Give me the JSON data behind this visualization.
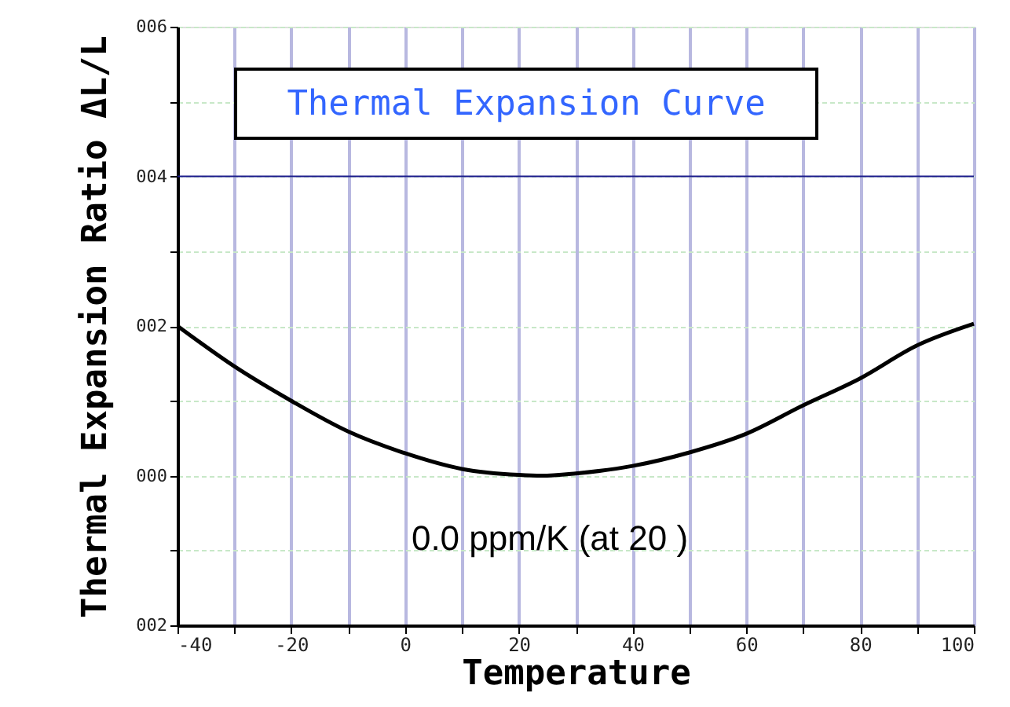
{
  "chart_data": {
    "type": "line",
    "title": "Thermal Expansion Curve",
    "xlabel": "Temperature",
    "ylabel": "Thermal Expansion Ratio ΔL/L",
    "x": [
      -40,
      -30,
      -20,
      -10,
      0,
      10,
      20,
      24,
      30,
      40,
      50,
      60,
      70,
      80,
      90,
      100
    ],
    "series": [
      {
        "color": "#000000",
        "values": [
          2.0,
          1.46,
          1.0,
          0.59,
          0.3,
          0.09,
          0.01,
          0.0,
          0.03,
          0.13,
          0.31,
          0.56,
          0.94,
          1.3,
          1.74,
          2.03
        ]
      }
    ],
    "xlim": [
      -40,
      100
    ],
    "ylim": [
      -2,
      6
    ],
    "xticks": [
      -40,
      {
        "value": -30,
        "label": null
      },
      -20,
      {
        "value": -10,
        "label": null
      },
      0,
      {
        "value": 10,
        "label": null
      },
      20,
      {
        "value": 30,
        "label": null
      },
      40,
      {
        "value": 50,
        "label": null
      },
      60,
      {
        "value": 70,
        "label": null
      },
      80,
      {
        "value": 90,
        "label": null
      },
      100
    ],
    "yticks": [
      {
        "value": -2,
        "label": "002"
      },
      {
        "value": -1,
        "label": null
      },
      {
        "value": 0,
        "label": "000"
      },
      {
        "value": 1,
        "label": null
      },
      {
        "value": 2,
        "label": "002"
      },
      {
        "value": 3,
        "label": null
      },
      {
        "value": 4,
        "label": "004"
      },
      {
        "value": 5,
        "label": null
      },
      {
        "value": 6,
        "label": "006"
      }
    ],
    "ref_lines": [
      {
        "axis": "y",
        "value": 4,
        "color": "#1a1a8c"
      }
    ],
    "annotations": [
      "0.0 ppm/K (at 20 )"
    ],
    "grid": true,
    "line_style": "solid",
    "marker": "none"
  }
}
